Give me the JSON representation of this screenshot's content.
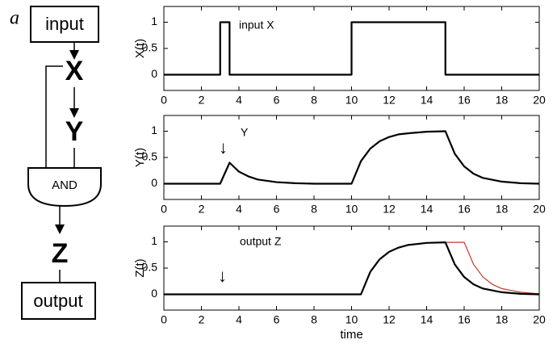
{
  "diagram": {
    "label": "a",
    "nodes": [
      "input",
      "X",
      "Y",
      "AND",
      "Z",
      "output"
    ]
  },
  "chart_data": [
    {
      "type": "line",
      "ylabel": "X(t)",
      "xlim": [
        0,
        20
      ],
      "ylim": [
        -0.3,
        1.3
      ],
      "xticks": [
        0,
        2,
        4,
        6,
        8,
        10,
        12,
        14,
        16,
        18,
        20
      ],
      "yticks": [
        0,
        0.5,
        1
      ],
      "annotations": [
        "input X"
      ],
      "series": [
        {
          "color": "#000000",
          "x": [
            0,
            3,
            3,
            3.5,
            3.5,
            10,
            10,
            15,
            15,
            20
          ],
          "values": [
            0,
            0,
            1,
            1,
            0,
            0,
            1,
            1,
            0,
            0
          ]
        }
      ]
    },
    {
      "type": "line",
      "ylabel": "Y(t)",
      "xlim": [
        0,
        20
      ],
      "ylim": [
        -0.3,
        1.3
      ],
      "xticks": [
        0,
        2,
        4,
        6,
        8,
        10,
        12,
        14,
        16,
        18,
        20
      ],
      "yticks": [
        0,
        0.5,
        1
      ],
      "annotations": [
        "↓",
        "Y"
      ],
      "series": [
        {
          "color": "#000000",
          "x": [
            0,
            3,
            3.5,
            4,
            4.5,
            5,
            6,
            7,
            8,
            10,
            10.5,
            11,
            11.5,
            12,
            12.5,
            13,
            14,
            15,
            15.5,
            16,
            16.5,
            17,
            18,
            19,
            20
          ],
          "values": [
            0,
            0,
            0.4,
            0.23,
            0.14,
            0.08,
            0.03,
            0.01,
            0,
            0,
            0.43,
            0.67,
            0.81,
            0.89,
            0.94,
            0.96,
            0.99,
            1,
            0.57,
            0.33,
            0.19,
            0.11,
            0.04,
            0.01,
            0
          ]
        }
      ]
    },
    {
      "type": "line",
      "ylabel": "Z(t)",
      "xlabel": "time",
      "xlim": [
        0,
        20
      ],
      "ylim": [
        -0.3,
        1.3
      ],
      "xticks": [
        0,
        2,
        4,
        6,
        8,
        10,
        12,
        14,
        16,
        18,
        20
      ],
      "yticks": [
        0,
        0.5,
        1
      ],
      "annotations": [
        "output Z",
        "↓"
      ],
      "series": [
        {
          "color": "#c0392b",
          "x": [
            15,
            16,
            16.5,
            17,
            17.5,
            18,
            19,
            20
          ],
          "values": [
            0.99,
            0.99,
            0.57,
            0.33,
            0.19,
            0.11,
            0.04,
            0.01
          ]
        },
        {
          "color": "#000000",
          "x": [
            0,
            10.5,
            11,
            11.5,
            12,
            12.5,
            13,
            14,
            15,
            15.5,
            16,
            16.5,
            17,
            18,
            19,
            20
          ],
          "values": [
            0,
            0,
            0.43,
            0.67,
            0.81,
            0.89,
            0.94,
            0.98,
            0.99,
            0.57,
            0.33,
            0.19,
            0.11,
            0.04,
            0.01,
            0
          ]
        }
      ]
    }
  ]
}
